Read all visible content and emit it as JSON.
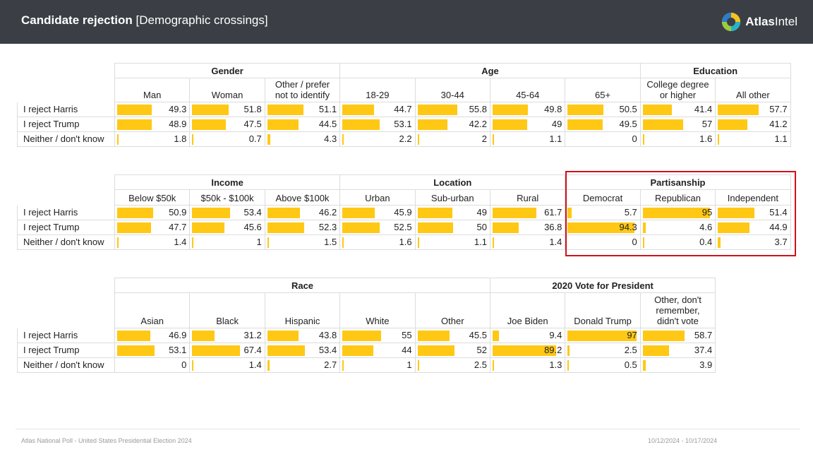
{
  "header": {
    "title_bold": "Candidate rejection",
    "title_rest": "[Demographic crossings]",
    "logo_bold": "Atlas",
    "logo_rest": "Intel"
  },
  "footer": {
    "left": "Atlas National Poll - United States Presidential Election 2024",
    "right": "10/12/2024 - 10/17/2024"
  },
  "colors": {
    "bar": "#ffc814",
    "header_bg": "#3b3f45",
    "highlight": "#d0111b"
  },
  "chart_data": {
    "type": "table",
    "rows": [
      "I reject Harris",
      "I reject Trump",
      "Neither / don't know"
    ],
    "value_scale_max": 100,
    "tables": [
      {
        "groups": [
          {
            "name": "Gender",
            "columns": [
              {
                "name": "Man",
                "values": [
                  49.3,
                  48.9,
                  1.8
                ]
              },
              {
                "name": "Woman",
                "values": [
                  51.8,
                  47.5,
                  0.7
                ]
              },
              {
                "name": "Other / prefer not to identify",
                "values": [
                  51.1,
                  44.5,
                  4.3
                ]
              }
            ]
          },
          {
            "name": "Age",
            "columns": [
              {
                "name": "18-29",
                "values": [
                  44.7,
                  53.1,
                  2.2
                ]
              },
              {
                "name": "30-44",
                "values": [
                  55.8,
                  42.2,
                  2
                ]
              },
              {
                "name": "45-64",
                "values": [
                  49.8,
                  49,
                  1.1
                ]
              },
              {
                "name": "65+",
                "values": [
                  50.5,
                  49.5,
                  0
                ]
              }
            ]
          },
          {
            "name": "Education",
            "columns": [
              {
                "name": "College degree or higher",
                "values": [
                  41.4,
                  57,
                  1.6
                ]
              },
              {
                "name": "All other",
                "values": [
                  57.7,
                  41.2,
                  1.1
                ]
              }
            ]
          }
        ]
      },
      {
        "groups": [
          {
            "name": "Income",
            "columns": [
              {
                "name": "Below $50k",
                "values": [
                  50.9,
                  47.7,
                  1.4
                ]
              },
              {
                "name": "$50k - $100k",
                "values": [
                  53.4,
                  45.6,
                  1
                ]
              },
              {
                "name": "Above $100k",
                "values": [
                  46.2,
                  52.3,
                  1.5
                ]
              }
            ]
          },
          {
            "name": "Location",
            "columns": [
              {
                "name": "Urban",
                "values": [
                  45.9,
                  52.5,
                  1.6
                ]
              },
              {
                "name": "Sub-urban",
                "values": [
                  49,
                  50,
                  1.1
                ]
              },
              {
                "name": "Rural",
                "values": [
                  61.7,
                  36.8,
                  1.4
                ]
              }
            ]
          },
          {
            "name": "Partisanship",
            "columns": [
              {
                "name": "Democrat",
                "values": [
                  5.7,
                  94.3,
                  0
                ]
              },
              {
                "name": "Republican",
                "values": [
                  95,
                  4.6,
                  0.4
                ]
              },
              {
                "name": "Independent",
                "values": [
                  51.4,
                  44.9,
                  3.7
                ]
              }
            ]
          }
        ]
      },
      {
        "groups": [
          {
            "name": "Race",
            "columns": [
              {
                "name": "Asian",
                "values": [
                  46.9,
                  53.1,
                  0
                ]
              },
              {
                "name": "Black",
                "values": [
                  31.2,
                  67.4,
                  1.4
                ]
              },
              {
                "name": "Hispanic",
                "values": [
                  43.8,
                  53.4,
                  2.7
                ]
              },
              {
                "name": "White",
                "values": [
                  55,
                  44,
                  1
                ]
              },
              {
                "name": "Other",
                "values": [
                  45.5,
                  52,
                  2.5
                ]
              }
            ]
          },
          {
            "name": "2020 Vote for President",
            "columns": [
              {
                "name": "Joe Biden",
                "values": [
                  9.4,
                  89.2,
                  1.3
                ]
              },
              {
                "name": "Donald Trump",
                "values": [
                  97,
                  2.5,
                  0.5
                ]
              },
              {
                "name": "Other, don't remember, didn't vote",
                "values": [
                  58.7,
                  37.4,
                  3.9
                ]
              }
            ]
          }
        ]
      }
    ]
  }
}
